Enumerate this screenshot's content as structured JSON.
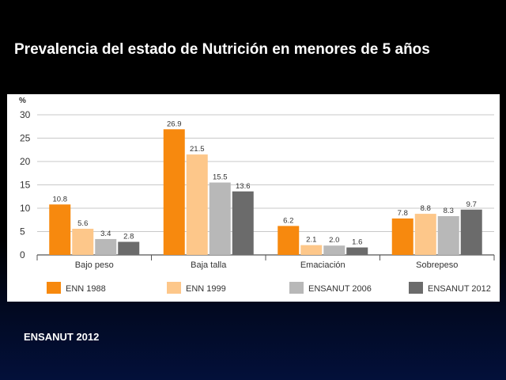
{
  "title": "Prevalencia del estado de Nutrición en menores de 5 años",
  "source_label": "ENSANUT 2012",
  "chart_data": {
    "type": "bar",
    "ylabel": "%",
    "ylim": [
      0,
      30
    ],
    "yticks": [
      0,
      5,
      10,
      15,
      20,
      25,
      30
    ],
    "grid": true,
    "legend_position": "bottom",
    "categories": [
      "Bajo peso",
      "Baja talla",
      "Emaciación",
      "Sobrepeso"
    ],
    "series": [
      {
        "name": "ENN 1988",
        "color": "#f7890e",
        "values": [
          10.8,
          26.9,
          6.2,
          7.8
        ],
        "labels": [
          "10.8",
          "26.9",
          "6.2",
          "7.8"
        ]
      },
      {
        "name": "ENN 1999",
        "color": "#fdc78a",
        "values": [
          5.6,
          21.5,
          2.1,
          8.8
        ],
        "labels": [
          "5.6",
          "21.5",
          "2.1",
          "8.8"
        ]
      },
      {
        "name": "ENSANUT 2006",
        "color": "#b8b8b8",
        "values": [
          3.4,
          15.5,
          2.0,
          8.3
        ],
        "labels": [
          "3.4",
          "15.5",
          "2.0",
          "8.3"
        ]
      },
      {
        "name": "ENSANUT 2012",
        "color": "#6b6b6b",
        "values": [
          2.8,
          13.6,
          1.6,
          9.7
        ],
        "labels": [
          "2.8",
          "13.6",
          "1.6",
          "9.7"
        ]
      }
    ]
  }
}
